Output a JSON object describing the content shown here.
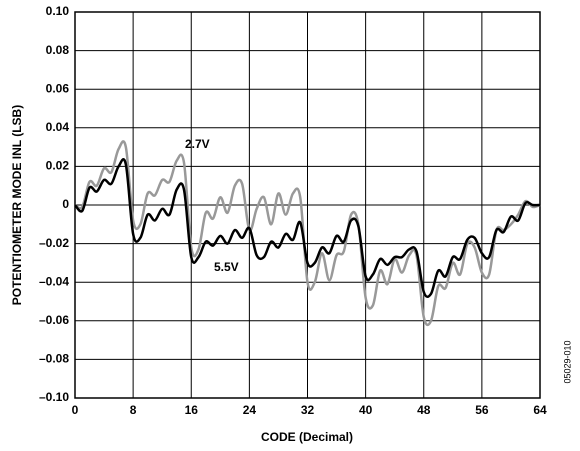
{
  "chart_data": {
    "type": "line",
    "x_label": "CODE (Decimal)",
    "y_label": "POTENTIOMETER MODE INL (LSB)",
    "annotations": [
      "2.7V",
      "5.5V",
      "05029-010"
    ],
    "x": [
      0,
      1,
      2,
      3,
      4,
      5,
      6,
      7,
      8,
      9,
      10,
      11,
      12,
      13,
      14,
      15,
      16,
      17,
      18,
      19,
      20,
      21,
      22,
      23,
      24,
      25,
      26,
      27,
      28,
      29,
      30,
      31,
      32,
      33,
      34,
      35,
      36,
      37,
      38,
      39,
      40,
      41,
      42,
      43,
      44,
      45,
      46,
      47,
      48,
      49,
      50,
      51,
      52,
      53,
      54,
      55,
      56,
      57,
      58,
      59,
      60,
      61,
      62,
      63,
      64
    ],
    "series": [
      {
        "name": "2.7V",
        "color": "#999999",
        "values": [
          0,
          -0.001,
          0.012,
          0.01,
          0.019,
          0.017,
          0.029,
          0.03,
          -0.008,
          -0.01,
          0.006,
          0.005,
          0.013,
          0.012,
          0.023,
          0.022,
          -0.022,
          -0.023,
          -0.004,
          -0.007,
          0.004,
          -0.004,
          0.01,
          0.011,
          -0.013,
          -0.002,
          0.004,
          -0.01,
          0.006,
          -0.005,
          0.006,
          0.004,
          -0.04,
          -0.04,
          -0.025,
          -0.039,
          -0.026,
          -0.024,
          -0.005,
          -0.01,
          -0.048,
          -0.052,
          -0.034,
          -0.041,
          -0.028,
          -0.035,
          -0.026,
          -0.026,
          -0.058,
          -0.06,
          -0.042,
          -0.043,
          -0.03,
          -0.036,
          -0.02,
          -0.022,
          -0.035,
          -0.036,
          -0.013,
          -0.013,
          -0.01,
          -0.005,
          0.002,
          -0.001,
          0
        ]
      },
      {
        "name": "5.5V",
        "color": "#000000",
        "values": [
          0,
          -0.003,
          0.009,
          0.007,
          0.013,
          0.011,
          0.02,
          0.021,
          -0.015,
          -0.017,
          -0.005,
          -0.008,
          -0.002,
          -0.005,
          0.008,
          0.008,
          -0.027,
          -0.027,
          -0.019,
          -0.021,
          -0.016,
          -0.02,
          -0.013,
          -0.017,
          -0.012,
          -0.026,
          -0.027,
          -0.019,
          -0.022,
          -0.015,
          -0.018,
          -0.009,
          -0.03,
          -0.03,
          -0.022,
          -0.025,
          -0.016,
          -0.019,
          -0.008,
          -0.011,
          -0.037,
          -0.036,
          -0.028,
          -0.031,
          -0.027,
          -0.027,
          -0.023,
          -0.024,
          -0.045,
          -0.046,
          -0.034,
          -0.037,
          -0.027,
          -0.028,
          -0.018,
          -0.017,
          -0.025,
          -0.027,
          -0.013,
          -0.014,
          -0.006,
          -0.008,
          0.001,
          0,
          0
        ]
      }
    ],
    "xlim": [
      0,
      64
    ],
    "xticks": [
      0,
      8,
      16,
      24,
      32,
      40,
      48,
      56,
      64
    ],
    "ylim": [
      -0.1,
      0.1
    ],
    "yticks": [
      {
        "value": -0.1,
        "label": "–0.10"
      },
      {
        "value": -0.08,
        "label": "–0.08"
      },
      {
        "value": -0.06,
        "label": "–0.06"
      },
      {
        "value": -0.04,
        "label": "–0.04"
      },
      {
        "value": -0.02,
        "label": "–0.02"
      },
      0,
      0.02,
      0.04,
      0.06,
      0.08,
      {
        "value": 0.1,
        "label": "0.10"
      }
    ],
    "grid": true
  }
}
